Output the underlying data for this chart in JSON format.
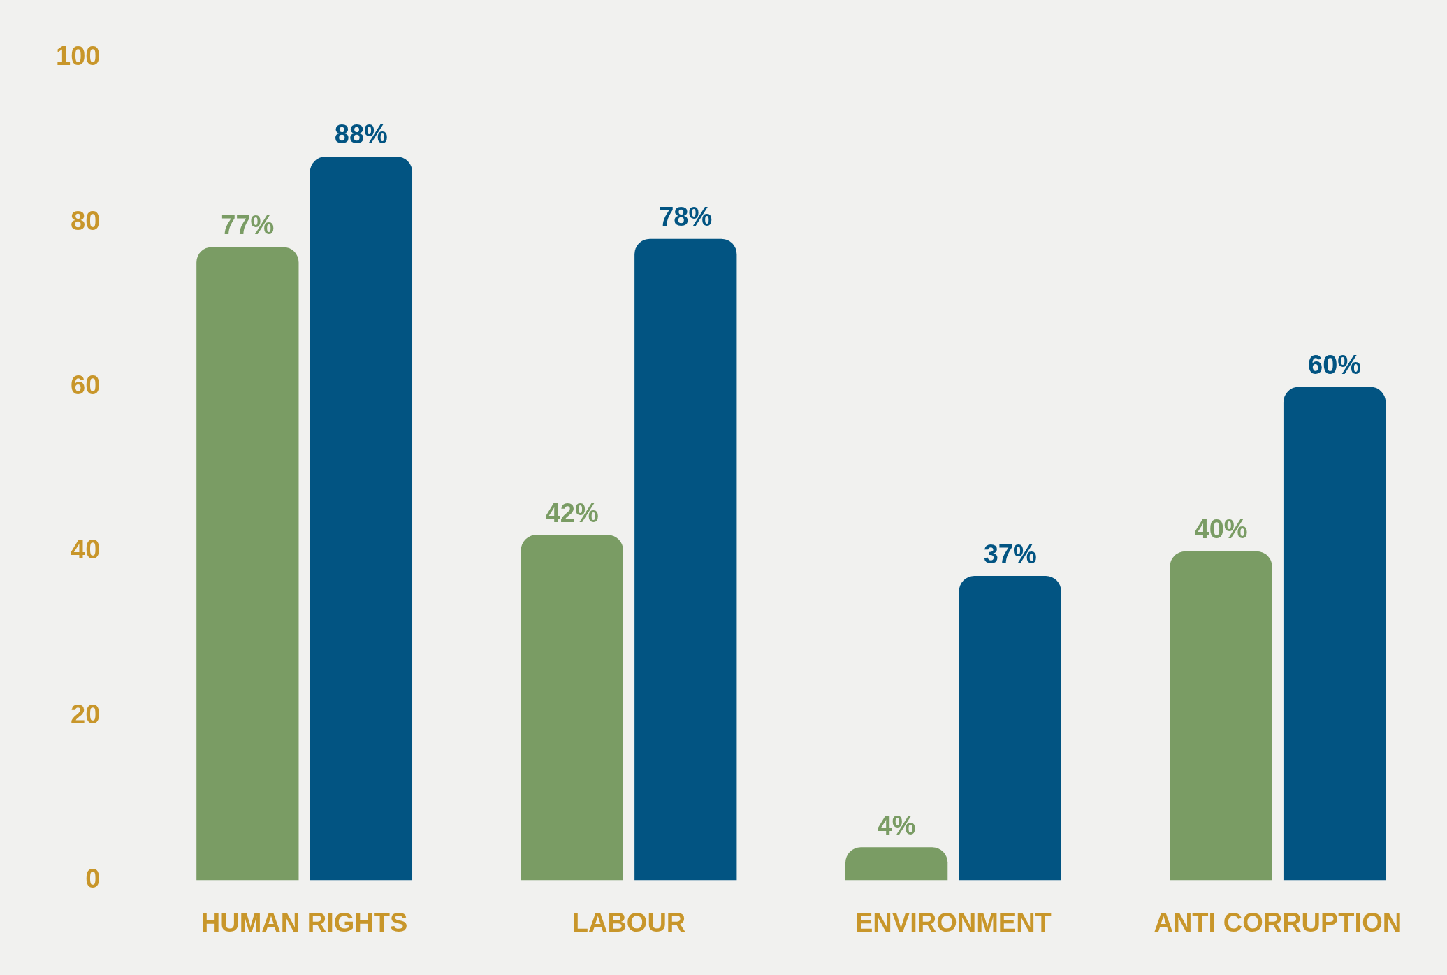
{
  "chart_data": {
    "type": "bar",
    "categories": [
      "HUMAN RIGHTS",
      "LABOUR",
      "ENVIRONMENT",
      "ANTI CORRUPTION"
    ],
    "series": [
      {
        "color": "#7a9c64",
        "values": [
          77,
          42,
          4,
          40
        ],
        "value_labels": [
          "77%",
          "42%",
          "4%",
          "40%"
        ]
      },
      {
        "color": "#025482",
        "values": [
          88,
          78,
          37,
          60
        ],
        "value_labels": [
          "88%",
          "78%",
          "37%",
          "60%"
        ]
      }
    ],
    "ylim": [
      0,
      100
    ],
    "yticks": [
      0,
      20,
      40,
      60,
      80,
      100
    ],
    "grid": false,
    "legend": false
  }
}
